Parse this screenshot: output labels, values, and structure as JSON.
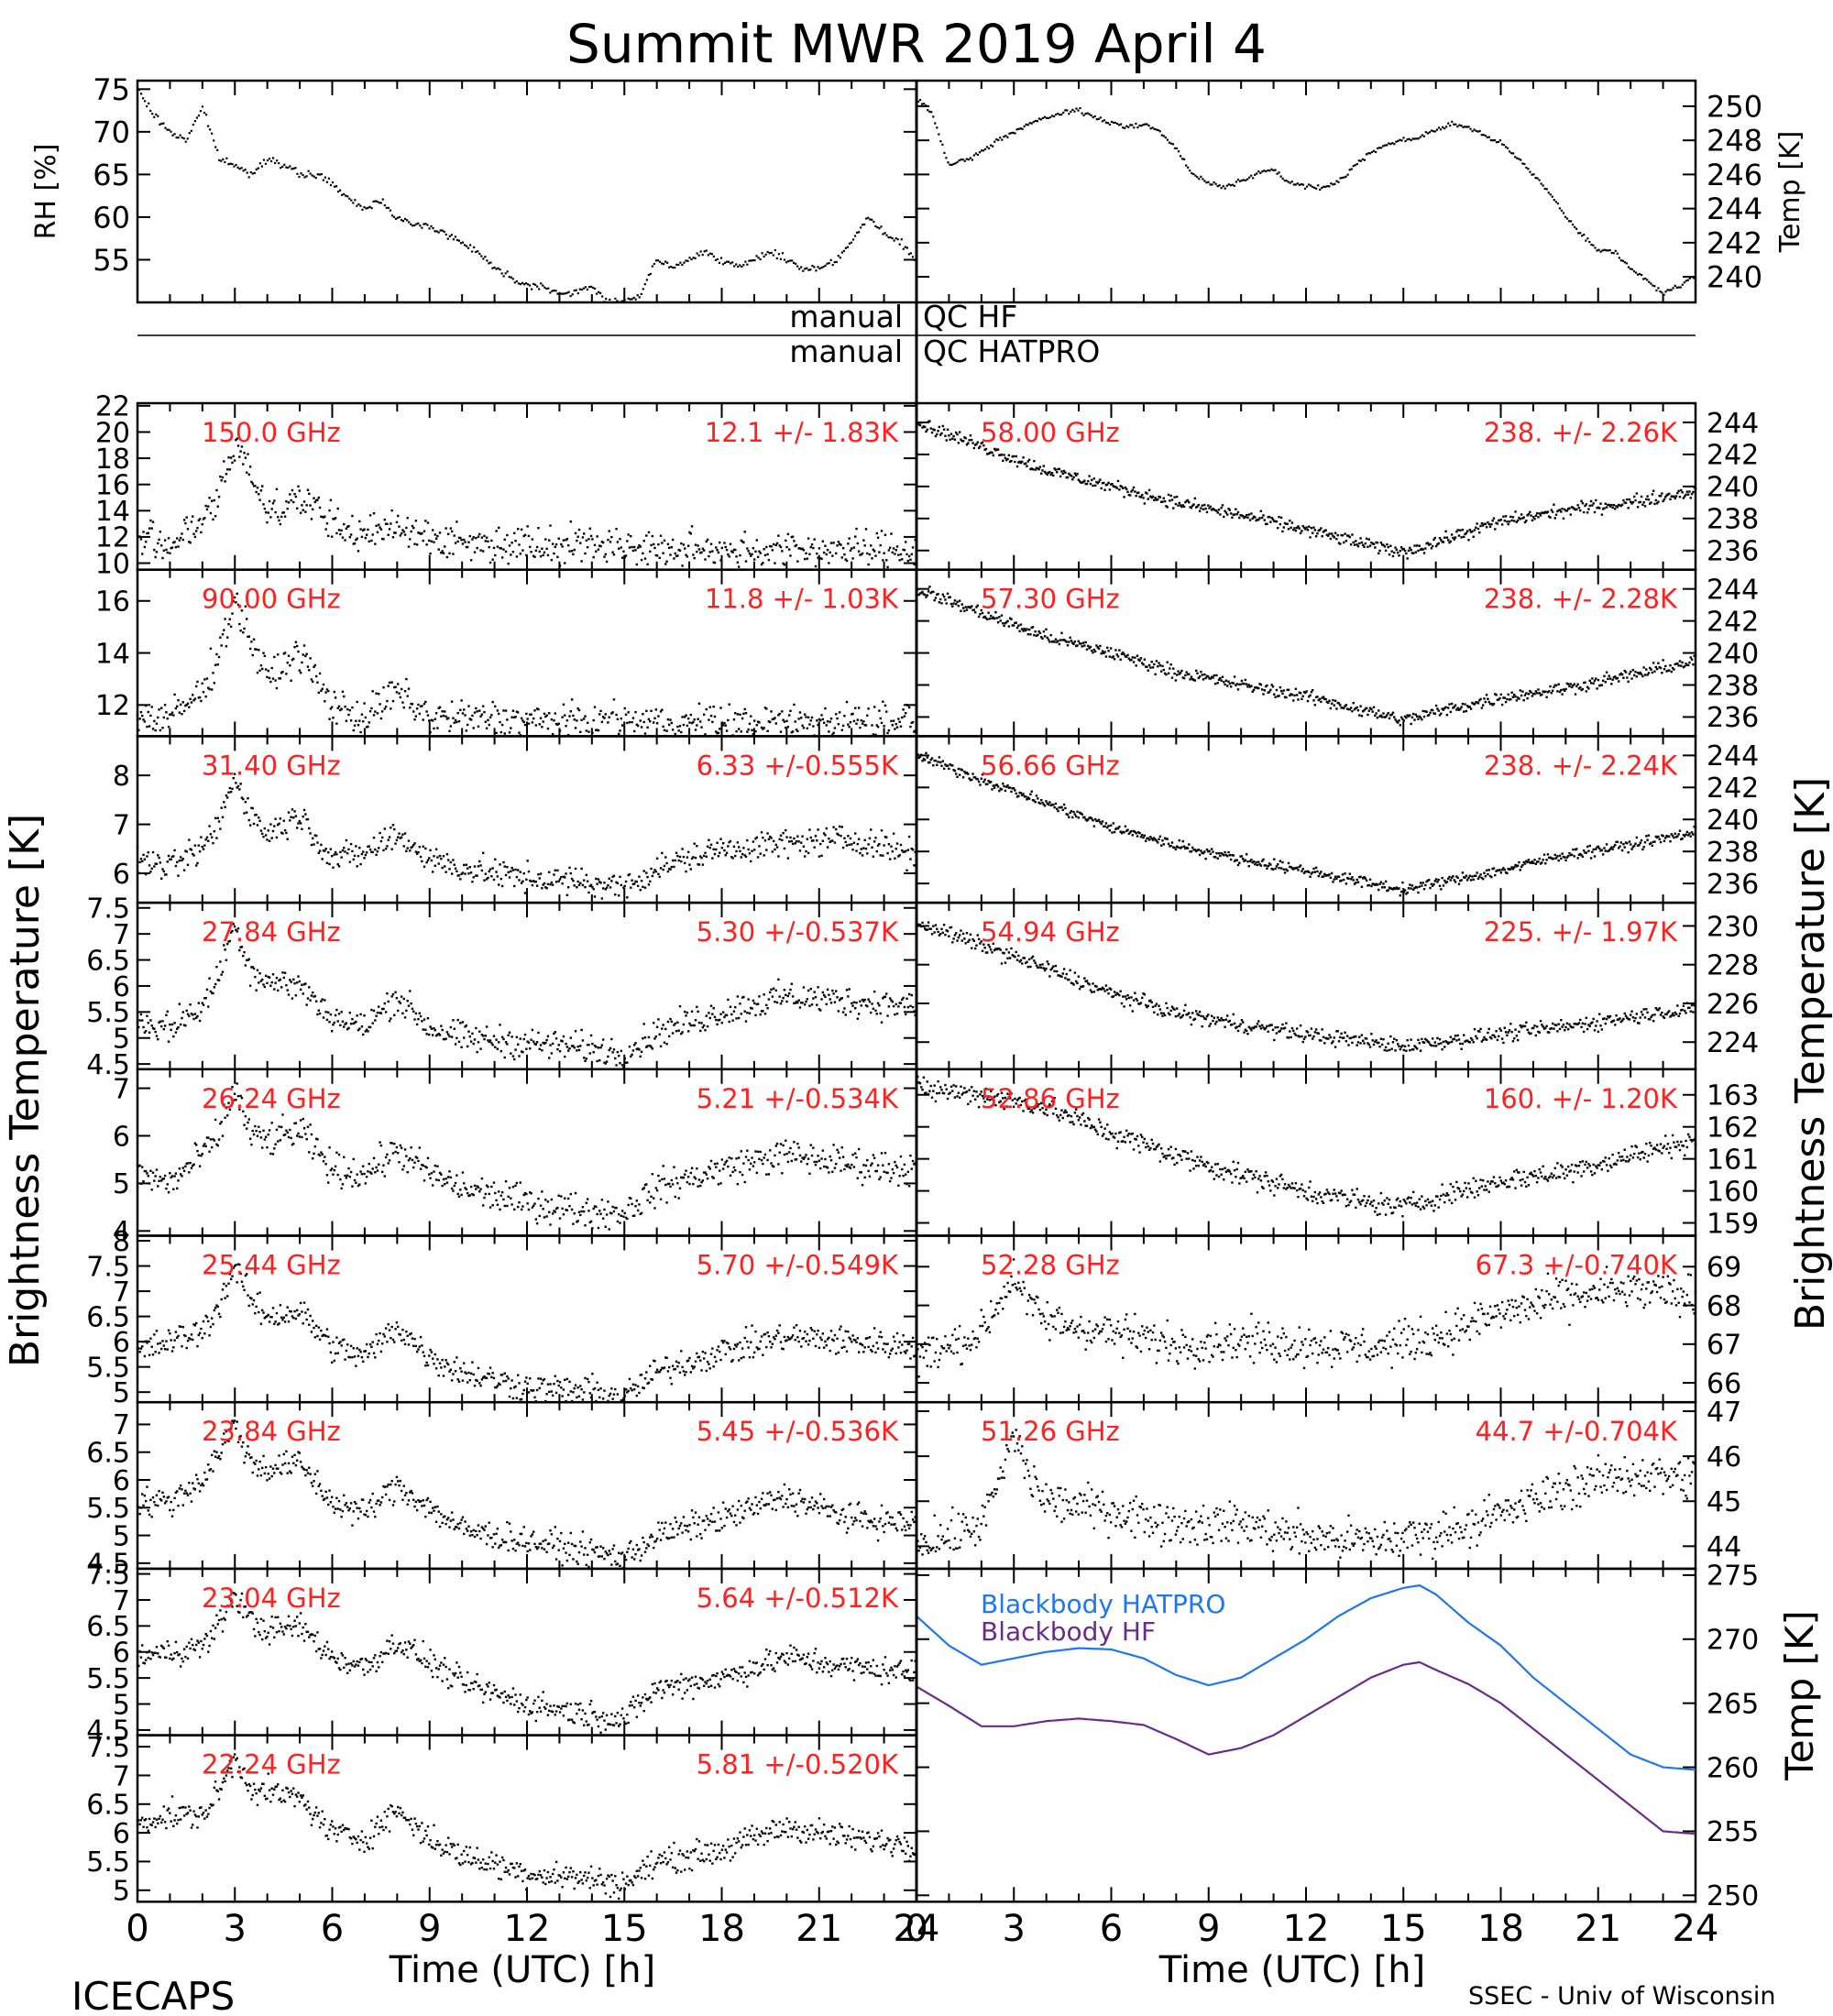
{
  "title": "Summit MWR 2019 April  4",
  "footer": {
    "left": "ICECAPS",
    "right": "SSEC - Univ of Wisconsin"
  },
  "axes": {
    "x_label": "Time (UTC) [h]",
    "x_ticks": [
      "0",
      "3",
      "6",
      "9",
      "12",
      "15",
      "18",
      "21",
      "24"
    ],
    "left_label": "Brightness Temperature [K]",
    "right_label": "Brightness Temperature [K]",
    "bb_label": "Temp [K]",
    "rh_label": "RH [%]",
    "temp_label": "Temp [K]"
  },
  "qc": {
    "left_top": "manual",
    "right_top": "QC HF",
    "left_bottom": "manual",
    "right_bottom": "QC HATPRO"
  },
  "colors": {
    "annotation": "#ff2020",
    "data": "#000000",
    "hatpro": "#1f77ee",
    "hf": "#6a2c8c"
  },
  "chart_data": [
    {
      "type": "scatter",
      "panel": "rh",
      "ylabel": "RH [%]",
      "ylim": [
        50,
        76
      ],
      "yticks": [
        55,
        60,
        65,
        70,
        75
      ],
      "x": [
        0,
        0.5,
        1,
        1.5,
        2,
        2.5,
        3,
        3.5,
        4,
        4.5,
        5,
        5.5,
        6,
        6.5,
        7,
        7.5,
        8,
        8.5,
        9,
        9.5,
        10,
        10.5,
        11,
        11.5,
        12,
        12.5,
        13,
        13.5,
        14,
        14.5,
        15,
        15.5,
        16,
        16.5,
        17,
        17.5,
        18,
        18.5,
        19,
        19.5,
        20,
        20.5,
        21,
        21.5,
        22,
        22.5,
        23,
        23.5,
        24
      ],
      "values": [
        75,
        72,
        70,
        69,
        73,
        67,
        66,
        65,
        67,
        66,
        65,
        65,
        64,
        62,
        61,
        62,
        60,
        59,
        59,
        58,
        57,
        56,
        54,
        53,
        52,
        52,
        51,
        51,
        52,
        50,
        50,
        51,
        55,
        54,
        55,
        56,
        55,
        54,
        55,
        56,
        55,
        54,
        54,
        55,
        57,
        60,
        58,
        57,
        55
      ]
    },
    {
      "type": "scatter",
      "panel": "temp",
      "ylabel": "Temp [K]",
      "ylim": [
        238.5,
        251.5
      ],
      "yticks": [
        240,
        242,
        244,
        246,
        248,
        250
      ],
      "x": [
        0,
        0.5,
        1,
        1.5,
        2,
        2.5,
        3,
        3.5,
        4,
        4.5,
        5,
        5.5,
        6,
        6.5,
        7,
        7.5,
        8,
        8.5,
        9,
        9.5,
        10,
        10.5,
        11,
        11.5,
        12,
        12.5,
        13,
        13.5,
        14,
        14.5,
        15,
        15.5,
        16,
        16.5,
        17,
        17.5,
        18,
        18.5,
        19,
        19.5,
        20,
        20.5,
        21,
        21.5,
        22,
        22.5,
        23,
        23.5,
        24
      ],
      "values": [
        250.5,
        249.5,
        246.5,
        246.8,
        247.3,
        248,
        248.5,
        249,
        249.3,
        249.6,
        249.8,
        249.3,
        249,
        248.8,
        249,
        248.5,
        247.5,
        246,
        245.5,
        245.3,
        245.6,
        246,
        246.3,
        245.5,
        245.3,
        245.2,
        245.6,
        246.5,
        247.3,
        247.8,
        248,
        248.2,
        248.6,
        249,
        248.7,
        248.3,
        247.8,
        247,
        246,
        245,
        243.5,
        242.5,
        241.5,
        241.5,
        240.5,
        239.8,
        239,
        239.5,
        240
      ]
    },
    {
      "type": "scatter",
      "panel": "left",
      "freq": "150.0 GHz",
      "stats": "12.1 +/-  1.83K",
      "ylim": [
        9.5,
        22.2
      ],
      "yticks": [
        10,
        12,
        14,
        16,
        18,
        20,
        22
      ],
      "noise": 1.2,
      "x": [
        0,
        1,
        2,
        2.5,
        3,
        3.5,
        4,
        5,
        6,
        7,
        8,
        9,
        10,
        12,
        14,
        16,
        18,
        20,
        22,
        24
      ],
      "values": [
        12,
        11.5,
        13,
        15,
        19,
        17,
        14,
        15,
        13,
        12,
        13,
        12,
        11.5,
        11.5,
        11.5,
        11,
        11,
        11,
        11,
        11
      ]
    },
    {
      "type": "scatter",
      "panel": "left",
      "freq": "90.00 GHz",
      "stats": "11.8 +/-  1.03K",
      "ylim": [
        10.8,
        17.2
      ],
      "yticks": [
        12,
        14,
        16
      ],
      "noise": 0.6,
      "x": [
        0,
        1,
        2,
        2.5,
        3,
        3.5,
        4,
        5,
        6,
        7,
        8,
        9,
        10,
        12,
        14,
        16,
        18,
        20,
        22,
        24
      ],
      "values": [
        11.5,
        11.5,
        12.5,
        14,
        16,
        14.5,
        13,
        14,
        12,
        11.5,
        12.5,
        11.5,
        11.5,
        11.4,
        11.3,
        11.3,
        11.3,
        11.3,
        11.4,
        11.5
      ]
    },
    {
      "type": "scatter",
      "panel": "left",
      "freq": "31.40 GHz",
      "stats": "6.33 +/-0.555K",
      "ylim": [
        5.4,
        8.8
      ],
      "yticks": [
        6,
        7,
        8
      ],
      "noise": 0.25,
      "x": [
        0,
        1,
        2,
        2.5,
        3,
        3.5,
        4,
        5,
        6,
        7,
        8,
        9,
        10,
        12,
        14,
        15,
        16,
        18,
        20,
        22,
        24
      ],
      "values": [
        6.3,
        6.1,
        6.5,
        7,
        8,
        7.2,
        6.8,
        7.2,
        6.3,
        6.4,
        6.8,
        6.3,
        6.1,
        5.9,
        5.8,
        5.7,
        6.1,
        6.5,
        6.6,
        6.7,
        6.4
      ]
    },
    {
      "type": "scatter",
      "panel": "left",
      "freq": "27.84 GHz",
      "stats": "5.30 +/-0.537K",
      "ylim": [
        4.4,
        7.6
      ],
      "yticks": [
        4.5,
        5.0,
        5.5,
        6.0,
        6.5,
        7.0,
        7.5
      ],
      "noise": 0.25,
      "x": [
        0,
        1,
        2,
        2.5,
        3,
        3.5,
        4,
        5,
        6,
        7,
        8,
        9,
        10,
        12,
        14,
        15,
        16,
        18,
        20,
        22,
        24
      ],
      "values": [
        5.3,
        5.2,
        5.6,
        6.2,
        7.2,
        6.3,
        6.1,
        6,
        5.4,
        5.2,
        5.8,
        5.2,
        5.0,
        4.9,
        4.8,
        4.7,
        5.1,
        5.5,
        5.8,
        5.7,
        5.6
      ]
    },
    {
      "type": "scatter",
      "panel": "left",
      "freq": "26.24 GHz",
      "stats": "5.21 +/-0.534K",
      "ylim": [
        3.9,
        7.4
      ],
      "yticks": [
        4,
        5,
        6,
        7
      ],
      "noise": 0.3,
      "x": [
        0,
        1,
        2,
        2.5,
        3,
        3.5,
        4,
        5,
        6,
        7,
        8,
        9,
        10,
        12,
        14,
        15,
        16,
        18,
        20,
        22,
        24
      ],
      "values": [
        5.2,
        5,
        5.6,
        6,
        7,
        6,
        5.9,
        6.1,
        5.3,
        5.2,
        5.7,
        5.2,
        4.9,
        4.6,
        4.4,
        4.4,
        4.9,
        5.3,
        5.6,
        5.4,
        5.3
      ]
    },
    {
      "type": "scatter",
      "panel": "left",
      "freq": "25.44 GHz",
      "stats": "5.70 +/-0.549K",
      "ylim": [
        4.8,
        8.1
      ],
      "yticks": [
        5.0,
        5.5,
        6.0,
        6.5,
        7.0,
        7.5,
        8.0
      ],
      "noise": 0.25,
      "x": [
        0,
        1,
        2,
        2.5,
        3,
        3.5,
        4,
        5,
        6,
        7,
        8,
        9,
        10,
        12,
        14,
        15,
        16,
        18,
        20,
        22,
        24
      ],
      "values": [
        5.8,
        6,
        6.2,
        6.7,
        7.5,
        6.8,
        6.5,
        6.6,
        5.9,
        5.7,
        6.3,
        5.7,
        5.4,
        5.1,
        5.0,
        4.9,
        5.4,
        5.8,
        6.1,
        6.0,
        5.9
      ]
    },
    {
      "type": "scatter",
      "panel": "left",
      "freq": "23.84 GHz",
      "stats": "5.45 +/-0.536K",
      "ylim": [
        4.4,
        7.4
      ],
      "yticks": [
        4.5,
        5.0,
        5.5,
        6.0,
        6.5,
        7.0
      ],
      "noise": 0.22,
      "x": [
        0,
        1,
        2,
        2.5,
        3,
        3.5,
        4,
        5,
        6,
        7,
        8,
        9,
        10,
        12,
        14,
        15,
        16,
        18,
        20,
        22,
        24
      ],
      "values": [
        5.6,
        5.6,
        6.0,
        6.5,
        7.0,
        6.3,
        6.2,
        6.3,
        5.6,
        5.4,
        5.9,
        5.5,
        5.1,
        4.9,
        4.7,
        4.6,
        5.0,
        5.3,
        5.7,
        5.3,
        5.2
      ]
    },
    {
      "type": "scatter",
      "panel": "left",
      "freq": "23.04 GHz",
      "stats": "5.64 +/-0.512K",
      "ylim": [
        4.4,
        7.6
      ],
      "yticks": [
        4.5,
        5.0,
        5.5,
        6.0,
        6.5,
        7.0,
        7.5
      ],
      "noise": 0.22,
      "x": [
        0,
        1,
        2,
        2.5,
        3,
        3.5,
        4,
        5,
        6,
        7,
        8,
        9,
        10,
        12,
        14,
        15,
        16,
        18,
        20,
        22,
        24
      ],
      "values": [
        5.9,
        6,
        6.1,
        6.5,
        7.1,
        6.6,
        6.4,
        6.5,
        5.9,
        5.7,
        6.2,
        5.8,
        5.4,
        5.0,
        4.8,
        4.7,
        5.3,
        5.5,
        5.9,
        5.7,
        5.6
      ]
    },
    {
      "type": "scatter",
      "panel": "left",
      "freq": "22.24 GHz",
      "stats": "5.81 +/-0.520K",
      "ylim": [
        4.8,
        7.7
      ],
      "yticks": [
        5.0,
        5.5,
        6.0,
        6.5,
        7.0,
        7.5
      ],
      "noise": 0.2,
      "x": [
        0,
        1,
        2,
        2.5,
        3,
        3.5,
        4,
        5,
        6,
        7,
        8,
        9,
        10,
        12,
        14,
        15,
        16,
        18,
        20,
        22,
        24
      ],
      "values": [
        6.2,
        6.3,
        6.3,
        6.7,
        7.3,
        6.8,
        6.7,
        6.6,
        6.0,
        5.9,
        6.4,
        5.9,
        5.6,
        5.3,
        5.2,
        5.1,
        5.5,
        5.7,
        6.1,
        5.9,
        5.8
      ]
    },
    {
      "type": "scatter",
      "panel": "right",
      "freq": "58.00 GHz",
      "stats": "238. +/- 2.26K",
      "ylim": [
        234.8,
        245.2
      ],
      "yticks": [
        236,
        238,
        240,
        242,
        244
      ],
      "noise": 0.35,
      "x": [
        0,
        2,
        4,
        6,
        8,
        10,
        12,
        14,
        15,
        16,
        18,
        20,
        22,
        24
      ],
      "values": [
        244,
        242.5,
        241,
        240,
        239,
        238.2,
        237.3,
        236.3,
        235.9,
        236.5,
        237.8,
        238.5,
        239,
        239.7
      ]
    },
    {
      "type": "scatter",
      "panel": "right",
      "freq": "57.30 GHz",
      "stats": "238. +/- 2.28K",
      "ylim": [
        234.8,
        245.2
      ],
      "yticks": [
        236,
        238,
        240,
        242,
        244
      ],
      "noise": 0.35,
      "x": [
        0,
        2,
        4,
        6,
        8,
        10,
        12,
        14,
        15,
        16,
        18,
        20,
        22,
        24
      ],
      "values": [
        244,
        242.5,
        241,
        240,
        238.8,
        238,
        237.3,
        236.3,
        235.8,
        236.3,
        237.2,
        237.8,
        238.6,
        239.5
      ]
    },
    {
      "type": "scatter",
      "panel": "right",
      "freq": "56.66 GHz",
      "stats": "238. +/- 2.24K",
      "ylim": [
        234.8,
        245.2
      ],
      "yticks": [
        236,
        238,
        240,
        242,
        244
      ],
      "noise": 0.3,
      "x": [
        0,
        2,
        4,
        6,
        8,
        10,
        12,
        14,
        15,
        16,
        18,
        20,
        22,
        24
      ],
      "values": [
        244,
        242.5,
        241,
        239.5,
        238.4,
        237.5,
        236.8,
        236,
        235.6,
        236,
        236.8,
        237.8,
        238.4,
        239.2
      ]
    },
    {
      "type": "scatter",
      "panel": "right",
      "freq": "54.94 GHz",
      "stats": "225. +/- 1.97K",
      "ylim": [
        222.6,
        231.2
      ],
      "yticks": [
        224,
        226,
        228,
        230
      ],
      "noise": 0.35,
      "x": [
        0,
        2,
        4,
        6,
        8,
        10,
        12,
        14,
        15,
        16,
        18,
        20,
        22,
        24
      ],
      "values": [
        230.2,
        229,
        227.8,
        226.5,
        225.5,
        224.9,
        224.4,
        224,
        223.8,
        224,
        224.4,
        224.8,
        225.3,
        225.8
      ]
    },
    {
      "type": "scatter",
      "panel": "right",
      "freq": "52.86 GHz",
      "stats": "160. +/- 1.20K",
      "ylim": [
        158.6,
        163.8
      ],
      "yticks": [
        159,
        160,
        161,
        162,
        163
      ],
      "noise": 0.3,
      "x": [
        0,
        2,
        4,
        6,
        8,
        10,
        12,
        14,
        15,
        16,
        18,
        20,
        22,
        24
      ],
      "values": [
        163.2,
        163,
        162.6,
        161.8,
        161.1,
        160.5,
        160,
        159.6,
        159.5,
        159.8,
        160.3,
        160.6,
        161.1,
        161.6
      ]
    },
    {
      "type": "scatter",
      "panel": "right",
      "freq": "52.28 GHz",
      "stats": "67.3 +/-0.740K",
      "ylim": [
        65.5,
        69.8
      ],
      "yticks": [
        66,
        67,
        68,
        69
      ],
      "noise": 0.45,
      "x": [
        0,
        1,
        2,
        2.5,
        3,
        3.5,
        4,
        6,
        8,
        10,
        12,
        14,
        16,
        18,
        20,
        22,
        24
      ],
      "values": [
        66.7,
        66.9,
        67.3,
        68,
        68.8,
        68,
        67.6,
        67.3,
        67,
        67.1,
        67,
        66.9,
        67.2,
        67.8,
        68.2,
        68.4,
        68.2
      ]
    },
    {
      "type": "scatter",
      "panel": "right",
      "freq": "51.26 GHz",
      "stats": "44.7 +/-0.704K",
      "ylim": [
        43.5,
        47.2
      ],
      "yticks": [
        44,
        45,
        46,
        47
      ],
      "noise": 0.4,
      "x": [
        0,
        1,
        2,
        2.5,
        3,
        3.5,
        4,
        6,
        8,
        10,
        12,
        14,
        16,
        18,
        20,
        22,
        24
      ],
      "values": [
        44.1,
        44.2,
        44.5,
        45.3,
        46.5,
        45.5,
        45,
        44.8,
        44.5,
        44.5,
        44.2,
        44.1,
        44.3,
        44.7,
        45.3,
        45.6,
        45.5
      ]
    },
    {
      "type": "line",
      "panel": "blackbody",
      "ylabel": "Temp [K]",
      "ylim": [
        249.5,
        275.5
      ],
      "yticks": [
        250,
        255,
        260,
        265,
        270,
        275
      ],
      "x": [
        0,
        1,
        2,
        3,
        4,
        5,
        6,
        7,
        8,
        9,
        10,
        11,
        12,
        13,
        14,
        15,
        15.5,
        16,
        17,
        18,
        19,
        20,
        21,
        22,
        23,
        24
      ],
      "series": [
        {
          "name": "Blackbody HATPRO",
          "values": [
            271.8,
            269.5,
            268,
            268.5,
            269,
            269.3,
            269.2,
            268.5,
            267.2,
            266.4,
            267,
            268.5,
            270,
            271.8,
            273.2,
            274,
            274.2,
            273.5,
            271.3,
            269.5,
            267,
            265,
            263,
            261,
            260,
            259.8
          ]
        },
        {
          "name": "Blackbody HF",
          "values": [
            266.3,
            264.8,
            263.2,
            263.2,
            263.6,
            263.8,
            263.6,
            263.3,
            262.2,
            261,
            261.5,
            262.5,
            264,
            265.5,
            267,
            268,
            268.2,
            267.6,
            266.5,
            265,
            263,
            261,
            259,
            257,
            255,
            254.8
          ]
        }
      ]
    }
  ]
}
